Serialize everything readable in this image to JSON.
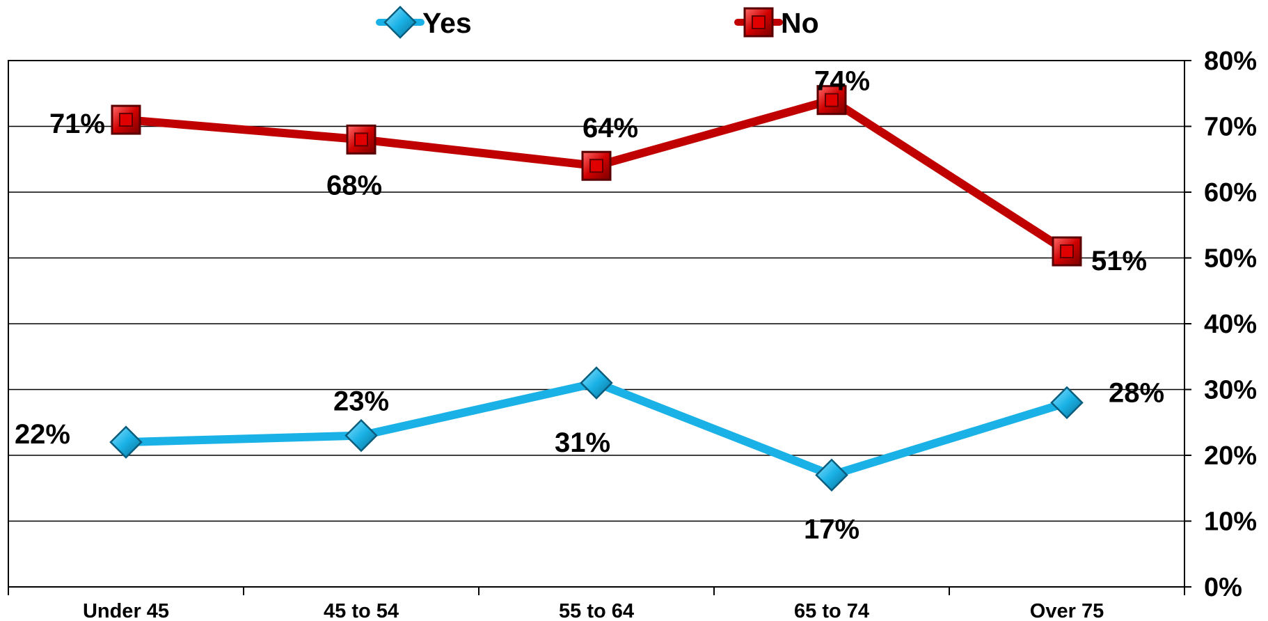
{
  "chart_data": {
    "type": "line",
    "categories": [
      "Under 45",
      "45 to 54",
      "55 to 64",
      "65 to 74",
      "Over 75"
    ],
    "series": [
      {
        "name": "Yes",
        "values": [
          22,
          23,
          31,
          17,
          28
        ],
        "labels": [
          "22%",
          "23%",
          "31%",
          "17%",
          "28%"
        ],
        "color": "#1ab2e6",
        "marker": "diamond"
      },
      {
        "name": "No",
        "values": [
          71,
          68,
          64,
          74,
          51
        ],
        "labels": [
          "71%",
          "68%",
          "64%",
          "74%",
          "51%"
        ],
        "color": "#c00000",
        "marker": "square"
      }
    ],
    "y_ticks": [
      "0%",
      "10%",
      "20%",
      "30%",
      "40%",
      "50%",
      "60%",
      "70%",
      "80%"
    ],
    "ylim": [
      0,
      80
    ],
    "y_axis_position": "right",
    "grid": true,
    "legend_position": "top"
  }
}
